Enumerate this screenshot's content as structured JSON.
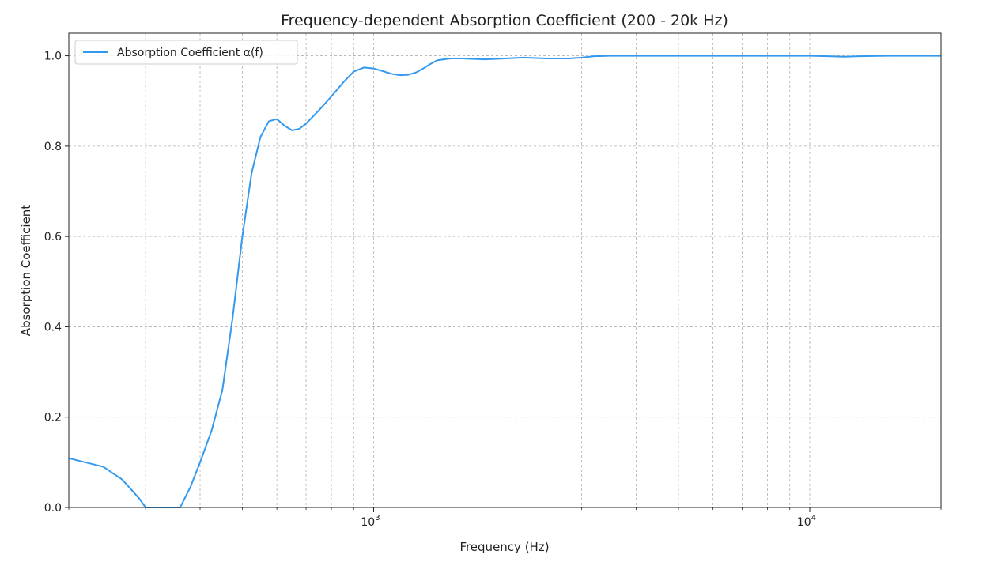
{
  "chart_data": {
    "type": "line",
    "title": "Frequency-dependent Absorption Coefficient (200 - 20k Hz)",
    "xlabel": "Frequency (Hz)",
    "ylabel": "Absorption Coefficient",
    "x_scale": "log",
    "xlim": [
      200,
      20000
    ],
    "ylim": [
      0,
      1.05
    ],
    "y_ticks": [
      0.0,
      0.2,
      0.4,
      0.6,
      0.8,
      1.0
    ],
    "y_tick_labels": [
      "0.0",
      "0.2",
      "0.4",
      "0.6",
      "0.8",
      "1.0"
    ],
    "x_major_ticks": [
      {
        "value": 1000,
        "base": "10",
        "exp": "3"
      },
      {
        "value": 10000,
        "base": "10",
        "exp": "4"
      }
    ],
    "grid": true,
    "grid_style": "dashed",
    "legend_position": "top-left",
    "series": [
      {
        "name": "Absorption Coefficient α(f)",
        "color": "#3399ee",
        "x": [
          200,
          240,
          265,
          290,
          300,
          320,
          340,
          360,
          380,
          400,
          425,
          450,
          475,
          500,
          525,
          550,
          575,
          600,
          625,
          650,
          675,
          700,
          725,
          750,
          775,
          800,
          850,
          900,
          950,
          1000,
          1050,
          1100,
          1150,
          1200,
          1250,
          1300,
          1350,
          1400,
          1500,
          1600,
          1700,
          1800,
          2000,
          2200,
          2500,
          2800,
          3000,
          3200,
          3500,
          4000,
          5000,
          6000,
          7000,
          8000,
          9000,
          10000,
          11000,
          12000,
          13000,
          15000,
          20000
        ],
        "y": [
          0.109,
          0.09,
          0.062,
          0.02,
          0.0,
          0.0,
          0.0,
          0.0,
          0.045,
          0.1,
          0.17,
          0.26,
          0.42,
          0.6,
          0.74,
          0.82,
          0.855,
          0.86,
          0.845,
          0.835,
          0.838,
          0.85,
          0.865,
          0.88,
          0.895,
          0.91,
          0.94,
          0.965,
          0.974,
          0.972,
          0.966,
          0.96,
          0.957,
          0.958,
          0.963,
          0.972,
          0.982,
          0.99,
          0.994,
          0.994,
          0.993,
          0.992,
          0.994,
          0.996,
          0.994,
          0.994,
          0.996,
          0.999,
          1.0,
          1.0,
          1.0,
          1.0,
          1.0,
          1.0,
          1.0,
          1.0,
          0.999,
          0.998,
          0.999,
          1.0,
          1.0
        ]
      }
    ]
  }
}
